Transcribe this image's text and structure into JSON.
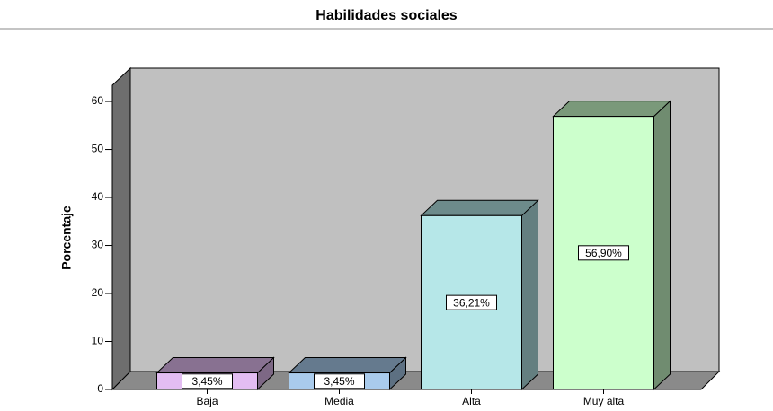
{
  "chart_data": {
    "type": "bar3d",
    "title": "Habilidades sociales",
    "ylabel": "Porcentaje",
    "categories": [
      "Baja",
      "Media",
      "Alta",
      "Muy alta"
    ],
    "values": [
      3.45,
      3.45,
      36.21,
      56.9
    ],
    "value_labels": [
      "3,45%",
      "3,45%",
      "36,21%",
      "56,90%"
    ],
    "colors": [
      "#e3bdf2",
      "#a9cbec",
      "#b6e7e8",
      "#ccffcc"
    ],
    "ylim": [
      0,
      63
    ],
    "yticks": [
      0,
      10,
      20,
      30,
      40,
      50,
      60
    ]
  }
}
